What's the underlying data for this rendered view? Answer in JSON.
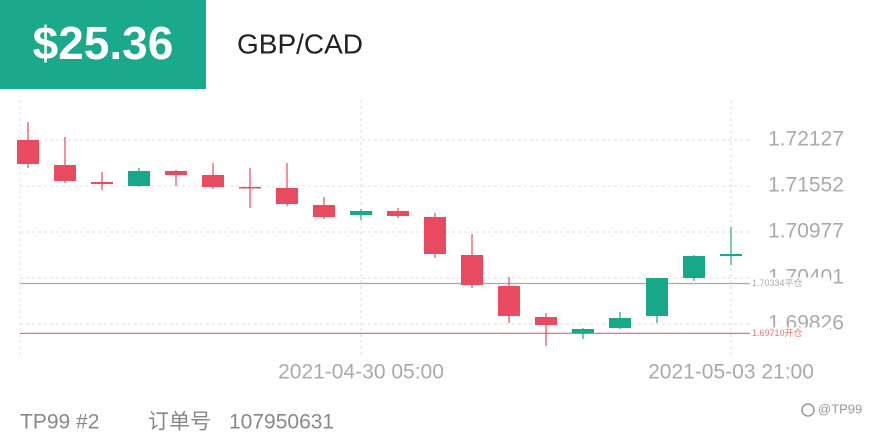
{
  "header": {
    "price": "$25.36",
    "pair": "GBP/CAD"
  },
  "chart_data": {
    "type": "candlestick",
    "categories": [
      null,
      null,
      null,
      null,
      null,
      null,
      null,
      null,
      null,
      "2021-04-30 05:00",
      null,
      null,
      null,
      null,
      null,
      null,
      null,
      null,
      null,
      "2021-05-03 21:00"
    ],
    "open": [
      1.72127,
      1.71815,
      1.71602,
      1.71552,
      1.7174,
      1.7169,
      1.7154,
      1.71527,
      1.71315,
      1.7119,
      1.7124,
      1.71165,
      1.7069,
      1.70302,
      1.69915,
      1.69715,
      1.69777,
      1.69927,
      1.70402,
      1.70677
    ],
    "high": [
      1.72352,
      1.72165,
      1.71727,
      1.71777,
      1.71752,
      1.7184,
      1.71777,
      1.7184,
      1.71415,
      1.71265,
      1.71277,
      1.71215,
      1.70952,
      1.70415,
      1.69965,
      1.69777,
      1.69977,
      1.70402,
      1.7069,
      1.7104
    ],
    "low": [
      1.71777,
      1.7159,
      1.71502,
      1.7154,
      1.71552,
      1.71515,
      1.71277,
      1.71302,
      1.7114,
      1.71127,
      1.71152,
      1.70652,
      1.70277,
      1.6984,
      1.69552,
      1.6964,
      1.69765,
      1.6984,
      1.70365,
      1.70565
    ],
    "close": [
      1.71827,
      1.71615,
      1.71577,
      1.7174,
      1.7169,
      1.7154,
      1.71527,
      1.71327,
      1.71165,
      1.7124,
      1.71177,
      1.70702,
      1.70315,
      1.69927,
      1.69815,
      1.69765,
      1.69902,
      1.70402,
      1.70677,
      1.70702
    ],
    "up_color": "#16a889",
    "down_color": "#e84a5f",
    "ylim": [
      1.6944,
      1.72627
    ],
    "yticks": [
      1.72127,
      1.71552,
      1.70977,
      1.70401,
      1.69826
    ],
    "grid": true,
    "reference_lines": [
      {
        "value": 1.70334,
        "label": "1.70334平仓",
        "color": "#aaaaaa"
      },
      {
        "value": 1.6971,
        "label": "1.69710开仓",
        "color": "#f07070"
      }
    ]
  },
  "footer": {
    "account": "TP99 #2",
    "order_label": "订单号",
    "order_id": "107950631",
    "watermark": "@TP99"
  }
}
